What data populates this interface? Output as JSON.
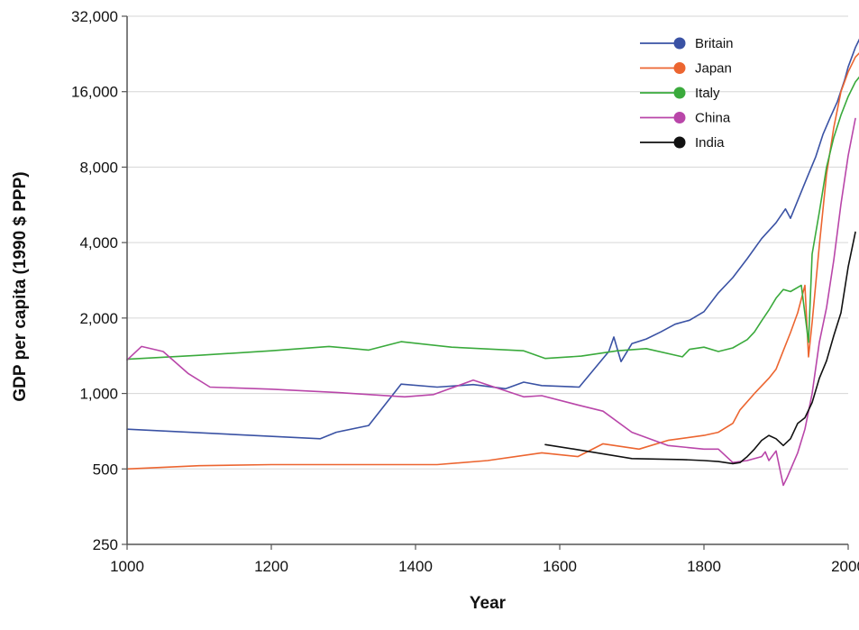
{
  "chart_data": {
    "type": "line",
    "title": "",
    "xlabel": "Year",
    "ylabel": "GDP per capita (1990 $ PPP)",
    "x_scale": "linear",
    "y_scale": "log2",
    "xlim": [
      1000,
      2000
    ],
    "ylim": [
      250,
      32000
    ],
    "x_ticks": [
      1000,
      1200,
      1400,
      1600,
      1800,
      2000
    ],
    "x_tick_labels": [
      "1000",
      "1200",
      "1400",
      "1600",
      "1800",
      "2000"
    ],
    "y_ticks": [
      250,
      500,
      1000,
      2000,
      4000,
      8000,
      16000,
      32000
    ],
    "y_tick_labels": [
      "250",
      "500",
      "1,000",
      "2,000",
      "4,000",
      "8,000",
      "16,000",
      "32,000"
    ],
    "grid": "horizontal",
    "legend_position": "top-right",
    "series": [
      {
        "name": "Britain",
        "color": "#3a52a4",
        "points": [
          [
            1000,
            720
          ],
          [
            1268,
            660
          ],
          [
            1290,
            700
          ],
          [
            1335,
            745
          ],
          [
            1380,
            1090
          ],
          [
            1430,
            1060
          ],
          [
            1480,
            1085
          ],
          [
            1525,
            1045
          ],
          [
            1550,
            1110
          ],
          [
            1575,
            1075
          ],
          [
            1627,
            1060
          ],
          [
            1668,
            1470
          ],
          [
            1675,
            1680
          ],
          [
            1680,
            1500
          ],
          [
            1685,
            1340
          ],
          [
            1700,
            1580
          ],
          [
            1720,
            1650
          ],
          [
            1740,
            1760
          ],
          [
            1760,
            1890
          ],
          [
            1780,
            1960
          ],
          [
            1800,
            2120
          ],
          [
            1820,
            2520
          ],
          [
            1840,
            2900
          ],
          [
            1860,
            3450
          ],
          [
            1880,
            4150
          ],
          [
            1900,
            4800
          ],
          [
            1913,
            5450
          ],
          [
            1920,
            5000
          ],
          [
            1938,
            6700
          ],
          [
            1945,
            7500
          ],
          [
            1955,
            8800
          ],
          [
            1965,
            10800
          ],
          [
            1975,
            12600
          ],
          [
            1985,
            14600
          ],
          [
            1995,
            17800
          ],
          [
            2000,
            20100
          ],
          [
            2010,
            24000
          ],
          [
            2020,
            27500
          ],
          [
            2030,
            30000
          ]
        ]
      },
      {
        "name": "Japan",
        "color": "#ec6530",
        "points": [
          [
            1000,
            500
          ],
          [
            1100,
            515
          ],
          [
            1200,
            520
          ],
          [
            1300,
            520
          ],
          [
            1430,
            520
          ],
          [
            1500,
            540
          ],
          [
            1575,
            580
          ],
          [
            1625,
            560
          ],
          [
            1660,
            630
          ],
          [
            1710,
            600
          ],
          [
            1750,
            650
          ],
          [
            1800,
            680
          ],
          [
            1820,
            700
          ],
          [
            1840,
            760
          ],
          [
            1850,
            860
          ],
          [
            1870,
            1000
          ],
          [
            1890,
            1150
          ],
          [
            1900,
            1250
          ],
          [
            1910,
            1480
          ],
          [
            1920,
            1750
          ],
          [
            1930,
            2100
          ],
          [
            1940,
            2700
          ],
          [
            1945,
            1400
          ],
          [
            1950,
            1920
          ],
          [
            1960,
            3900
          ],
          [
            1970,
            7500
          ],
          [
            1980,
            11500
          ],
          [
            1990,
            16000
          ],
          [
            2000,
            19200
          ],
          [
            2010,
            22000
          ],
          [
            2020,
            23500
          ],
          [
            2030,
            24000
          ]
        ]
      },
      {
        "name": "Italy",
        "color": "#3aaa3c",
        "points": [
          [
            1000,
            1370
          ],
          [
            1100,
            1420
          ],
          [
            1200,
            1480
          ],
          [
            1280,
            1540
          ],
          [
            1335,
            1490
          ],
          [
            1380,
            1610
          ],
          [
            1450,
            1530
          ],
          [
            1550,
            1480
          ],
          [
            1580,
            1380
          ],
          [
            1630,
            1410
          ],
          [
            1680,
            1480
          ],
          [
            1720,
            1510
          ],
          [
            1770,
            1400
          ],
          [
            1780,
            1500
          ],
          [
            1800,
            1530
          ],
          [
            1820,
            1470
          ],
          [
            1840,
            1520
          ],
          [
            1860,
            1640
          ],
          [
            1870,
            1760
          ],
          [
            1880,
            1950
          ],
          [
            1890,
            2150
          ],
          [
            1900,
            2400
          ],
          [
            1910,
            2600
          ],
          [
            1920,
            2550
          ],
          [
            1935,
            2700
          ],
          [
            1945,
            1600
          ],
          [
            1950,
            3600
          ],
          [
            1960,
            5300
          ],
          [
            1970,
            8000
          ],
          [
            1980,
            10500
          ],
          [
            1990,
            12900
          ],
          [
            2000,
            15300
          ],
          [
            2010,
            17500
          ],
          [
            2020,
            19000
          ],
          [
            2030,
            16500
          ]
        ]
      },
      {
        "name": "China",
        "color": "#b946a9",
        "points": [
          [
            1000,
            1360
          ],
          [
            1020,
            1540
          ],
          [
            1050,
            1470
          ],
          [
            1085,
            1200
          ],
          [
            1115,
            1060
          ],
          [
            1200,
            1040
          ],
          [
            1290,
            1010
          ],
          [
            1385,
            970
          ],
          [
            1425,
            990
          ],
          [
            1480,
            1130
          ],
          [
            1550,
            970
          ],
          [
            1575,
            980
          ],
          [
            1625,
            900
          ],
          [
            1660,
            850
          ],
          [
            1700,
            700
          ],
          [
            1750,
            620
          ],
          [
            1800,
            600
          ],
          [
            1820,
            600
          ],
          [
            1840,
            530
          ],
          [
            1860,
            540
          ],
          [
            1880,
            560
          ],
          [
            1885,
            585
          ],
          [
            1890,
            540
          ],
          [
            1900,
            590
          ],
          [
            1910,
            430
          ],
          [
            1915,
            460
          ],
          [
            1930,
            580
          ],
          [
            1940,
            720
          ],
          [
            1950,
            1000
          ],
          [
            1960,
            1600
          ],
          [
            1970,
            2200
          ],
          [
            1980,
            3400
          ],
          [
            1990,
            5700
          ],
          [
            2000,
            8900
          ],
          [
            2010,
            12500
          ]
        ]
      },
      {
        "name": "India",
        "color": "#111111",
        "points": [
          [
            1580,
            625
          ],
          [
            1620,
            600
          ],
          [
            1700,
            550
          ],
          [
            1770,
            545
          ],
          [
            1800,
            540
          ],
          [
            1820,
            535
          ],
          [
            1840,
            525
          ],
          [
            1850,
            530
          ],
          [
            1860,
            560
          ],
          [
            1870,
            600
          ],
          [
            1880,
            650
          ],
          [
            1890,
            680
          ],
          [
            1900,
            660
          ],
          [
            1910,
            620
          ],
          [
            1920,
            660
          ],
          [
            1930,
            760
          ],
          [
            1940,
            800
          ],
          [
            1950,
            920
          ],
          [
            1960,
            1150
          ],
          [
            1970,
            1350
          ],
          [
            1980,
            1700
          ],
          [
            1990,
            2100
          ],
          [
            2000,
            3200
          ],
          [
            2010,
            4400
          ]
        ]
      }
    ]
  }
}
